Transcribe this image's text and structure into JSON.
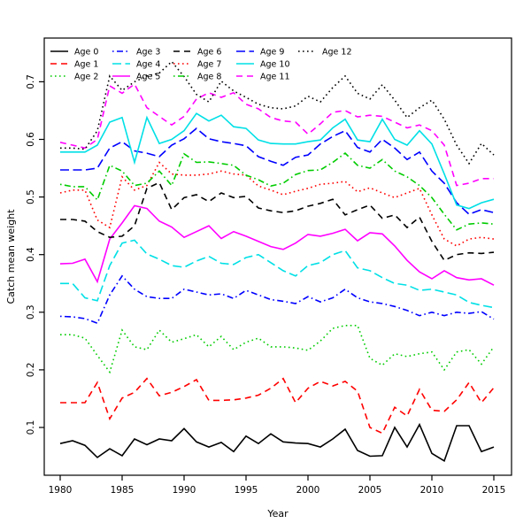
{
  "figure": {
    "background": "#ffffff",
    "frame_color": "#000000"
  },
  "chart_data": {
    "type": "line",
    "title": "",
    "xlabel": "Year",
    "ylabel": "Catch mean weight",
    "x_ticks": [
      1980,
      1985,
      1990,
      1995,
      2000,
      2005,
      2010,
      2015
    ],
    "y_ticks": [
      0.1,
      0.2,
      0.3,
      0.4,
      0.5,
      0.6,
      0.7
    ],
    "xlim": [
      1978.7,
      2016.4
    ],
    "ylim": [
      0.017,
      0.776
    ],
    "grid": "off",
    "legend": {
      "position": "top-left",
      "columns": 5,
      "rows": 3,
      "box": "none"
    },
    "x": [
      1980,
      1981,
      1982,
      1983,
      1984,
      1985,
      1986,
      1987,
      1988,
      1989,
      1990,
      1991,
      1992,
      1993,
      1994,
      1995,
      1996,
      1997,
      1998,
      1999,
      2000,
      2001,
      2002,
      2003,
      2004,
      2005,
      2006,
      2007,
      2008,
      2009,
      2010,
      2011,
      2012,
      2013,
      2014,
      2015
    ],
    "series": [
      {
        "name": "Age 0",
        "color": "#000000",
        "lty": "solid",
        "values": [
          0.072,
          0.077,
          0.069,
          0.048,
          0.063,
          0.051,
          0.08,
          0.07,
          0.08,
          0.077,
          0.098,
          0.075,
          0.066,
          0.074,
          0.058,
          0.085,
          0.072,
          0.089,
          0.075,
          0.073,
          0.072,
          0.066,
          0.08,
          0.097,
          0.06,
          0.05,
          0.051,
          0.1,
          0.066,
          0.105,
          0.055,
          0.042,
          0.103,
          0.103,
          0.058,
          0.066
        ]
      },
      {
        "name": "Age 1",
        "color": "#FF0000",
        "lty": "dashed",
        "values": [
          0.143,
          0.143,
          0.143,
          0.178,
          0.115,
          0.151,
          0.161,
          0.185,
          0.155,
          0.161,
          0.171,
          0.183,
          0.147,
          0.147,
          0.148,
          0.151,
          0.156,
          0.168,
          0.185,
          0.143,
          0.168,
          0.18,
          0.172,
          0.18,
          0.163,
          0.1,
          0.09,
          0.135,
          0.12,
          0.166,
          0.13,
          0.128,
          0.148,
          0.178,
          0.143,
          0.169
        ]
      },
      {
        "name": "Age 2",
        "color": "#00CC00",
        "lty": "dotted",
        "values": [
          0.261,
          0.261,
          0.255,
          0.225,
          0.196,
          0.269,
          0.24,
          0.235,
          0.269,
          0.248,
          0.254,
          0.261,
          0.24,
          0.258,
          0.235,
          0.248,
          0.255,
          0.24,
          0.24,
          0.238,
          0.234,
          0.25,
          0.272,
          0.277,
          0.277,
          0.22,
          0.208,
          0.228,
          0.223,
          0.228,
          0.231,
          0.2,
          0.231,
          0.235,
          0.21,
          0.24
        ]
      },
      {
        "name": "Age 3",
        "color": "#0000FF",
        "lty": "dotdash",
        "values": [
          0.293,
          0.292,
          0.289,
          0.281,
          0.33,
          0.363,
          0.34,
          0.327,
          0.324,
          0.324,
          0.34,
          0.335,
          0.33,
          0.332,
          0.324,
          0.338,
          0.33,
          0.322,
          0.319,
          0.315,
          0.327,
          0.318,
          0.325,
          0.34,
          0.325,
          0.318,
          0.315,
          0.31,
          0.303,
          0.294,
          0.3,
          0.294,
          0.3,
          0.298,
          0.301,
          0.288
        ]
      },
      {
        "name": "Age 4",
        "color": "#00E0E6",
        "lty": "longdash",
        "values": [
          0.35,
          0.35,
          0.325,
          0.32,
          0.381,
          0.42,
          0.425,
          0.401,
          0.392,
          0.381,
          0.378,
          0.389,
          0.397,
          0.385,
          0.383,
          0.395,
          0.4,
          0.386,
          0.372,
          0.363,
          0.381,
          0.386,
          0.4,
          0.407,
          0.377,
          0.372,
          0.36,
          0.35,
          0.347,
          0.338,
          0.34,
          0.335,
          0.33,
          0.317,
          0.312,
          0.308
        ]
      },
      {
        "name": "Age 5",
        "color": "#FF00FF",
        "lty": "solid",
        "values": [
          0.384,
          0.385,
          0.392,
          0.353,
          0.427,
          0.455,
          0.485,
          0.48,
          0.458,
          0.448,
          0.43,
          0.44,
          0.45,
          0.428,
          0.44,
          0.432,
          0.423,
          0.414,
          0.409,
          0.42,
          0.435,
          0.432,
          0.437,
          0.444,
          0.424,
          0.438,
          0.436,
          0.415,
          0.39,
          0.37,
          0.358,
          0.372,
          0.36,
          0.356,
          0.358,
          0.347
        ]
      },
      {
        "name": "Age 6",
        "color": "#000000",
        "lty": "dashed",
        "values": [
          0.461,
          0.461,
          0.458,
          0.44,
          0.43,
          0.432,
          0.45,
          0.515,
          0.525,
          0.478,
          0.499,
          0.504,
          0.492,
          0.507,
          0.499,
          0.501,
          0.481,
          0.476,
          0.473,
          0.476,
          0.484,
          0.489,
          0.496,
          0.469,
          0.478,
          0.486,
          0.463,
          0.469,
          0.447,
          0.465,
          0.423,
          0.39,
          0.4,
          0.403,
          0.402,
          0.404
        ]
      },
      {
        "name": "Age 7",
        "color": "#FF0000",
        "lty": "dotted",
        "values": [
          0.507,
          0.512,
          0.512,
          0.46,
          0.447,
          0.535,
          0.512,
          0.52,
          0.56,
          0.54,
          0.538,
          0.538,
          0.54,
          0.545,
          0.54,
          0.538,
          0.519,
          0.512,
          0.504,
          0.51,
          0.515,
          0.522,
          0.524,
          0.527,
          0.509,
          0.516,
          0.507,
          0.499,
          0.507,
          0.515,
          0.469,
          0.427,
          0.415,
          0.427,
          0.43,
          0.427
        ]
      },
      {
        "name": "Age 8",
        "color": "#00CC00",
        "lty": "dotdash",
        "values": [
          0.522,
          0.518,
          0.518,
          0.495,
          0.555,
          0.545,
          0.52,
          0.524,
          0.545,
          0.52,
          0.575,
          0.56,
          0.561,
          0.558,
          0.555,
          0.538,
          0.53,
          0.519,
          0.524,
          0.539,
          0.546,
          0.547,
          0.56,
          0.576,
          0.555,
          0.55,
          0.565,
          0.545,
          0.535,
          0.52,
          0.499,
          0.47,
          0.443,
          0.453,
          0.455,
          0.453
        ]
      },
      {
        "name": "Age 9",
        "color": "#0000FF",
        "lty": "longdash",
        "values": [
          0.547,
          0.547,
          0.547,
          0.55,
          0.585,
          0.596,
          0.58,
          0.576,
          0.57,
          0.59,
          0.601,
          0.619,
          0.601,
          0.596,
          0.593,
          0.589,
          0.57,
          0.562,
          0.555,
          0.569,
          0.573,
          0.592,
          0.605,
          0.615,
          0.586,
          0.578,
          0.6,
          0.585,
          0.565,
          0.578,
          0.545,
          0.524,
          0.49,
          0.47,
          0.478,
          0.473
        ]
      },
      {
        "name": "Age 10",
        "color": "#00E0E6",
        "lty": "solid",
        "values": [
          0.578,
          0.578,
          0.578,
          0.59,
          0.63,
          0.638,
          0.56,
          0.638,
          0.593,
          0.6,
          0.615,
          0.645,
          0.632,
          0.642,
          0.622,
          0.619,
          0.599,
          0.593,
          0.592,
          0.592,
          0.596,
          0.599,
          0.62,
          0.635,
          0.599,
          0.596,
          0.635,
          0.6,
          0.59,
          0.615,
          0.592,
          0.54,
          0.486,
          0.48,
          0.49,
          0.496
        ]
      },
      {
        "name": "Age 11",
        "color": "#FF00FF",
        "lty": "dashed",
        "values": [
          0.595,
          0.59,
          0.585,
          0.6,
          0.693,
          0.68,
          0.696,
          0.655,
          0.64,
          0.625,
          0.64,
          0.67,
          0.681,
          0.673,
          0.681,
          0.661,
          0.653,
          0.638,
          0.632,
          0.63,
          0.609,
          0.627,
          0.647,
          0.65,
          0.639,
          0.642,
          0.64,
          0.63,
          0.62,
          0.625,
          0.615,
          0.59,
          0.52,
          0.524,
          0.532,
          0.532
        ]
      },
      {
        "name": "Age 12",
        "color": "#000000",
        "lty": "dotted",
        "values": [
          0.585,
          0.585,
          0.583,
          0.615,
          0.71,
          0.685,
          0.7,
          0.71,
          0.715,
          0.735,
          0.709,
          0.678,
          0.665,
          0.701,
          0.684,
          0.673,
          0.661,
          0.655,
          0.653,
          0.658,
          0.675,
          0.665,
          0.69,
          0.71,
          0.68,
          0.67,
          0.695,
          0.668,
          0.638,
          0.655,
          0.668,
          0.635,
          0.59,
          0.558,
          0.593,
          0.573
        ]
      }
    ]
  }
}
